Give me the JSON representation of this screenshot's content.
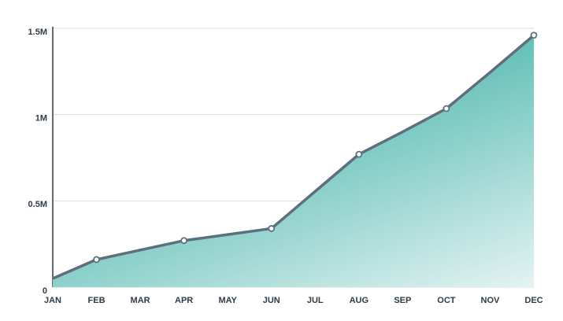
{
  "chart_data": {
    "type": "area",
    "categories": [
      "JAN",
      "FEB",
      "MAR",
      "APR",
      "MAY",
      "JUN",
      "JUL",
      "AUG",
      "SEP",
      "OCT",
      "NOV",
      "DEC"
    ],
    "values": [
      50000,
      160000,
      215000,
      270000,
      305000,
      340000,
      555000,
      770000,
      900000,
      1035000,
      1245000,
      1460000
    ],
    "color": "#5bbcb4",
    "line_color": "#5e6f7c",
    "ylim": [
      0,
      1500000
    ],
    "yticks": [
      0,
      {
        "value": 500000,
        "label": "0.5M"
      },
      {
        "value": 1000000,
        "label": "1M"
      },
      {
        "value": 1500000,
        "label": "1.5M"
      }
    ],
    "grid": true
  }
}
